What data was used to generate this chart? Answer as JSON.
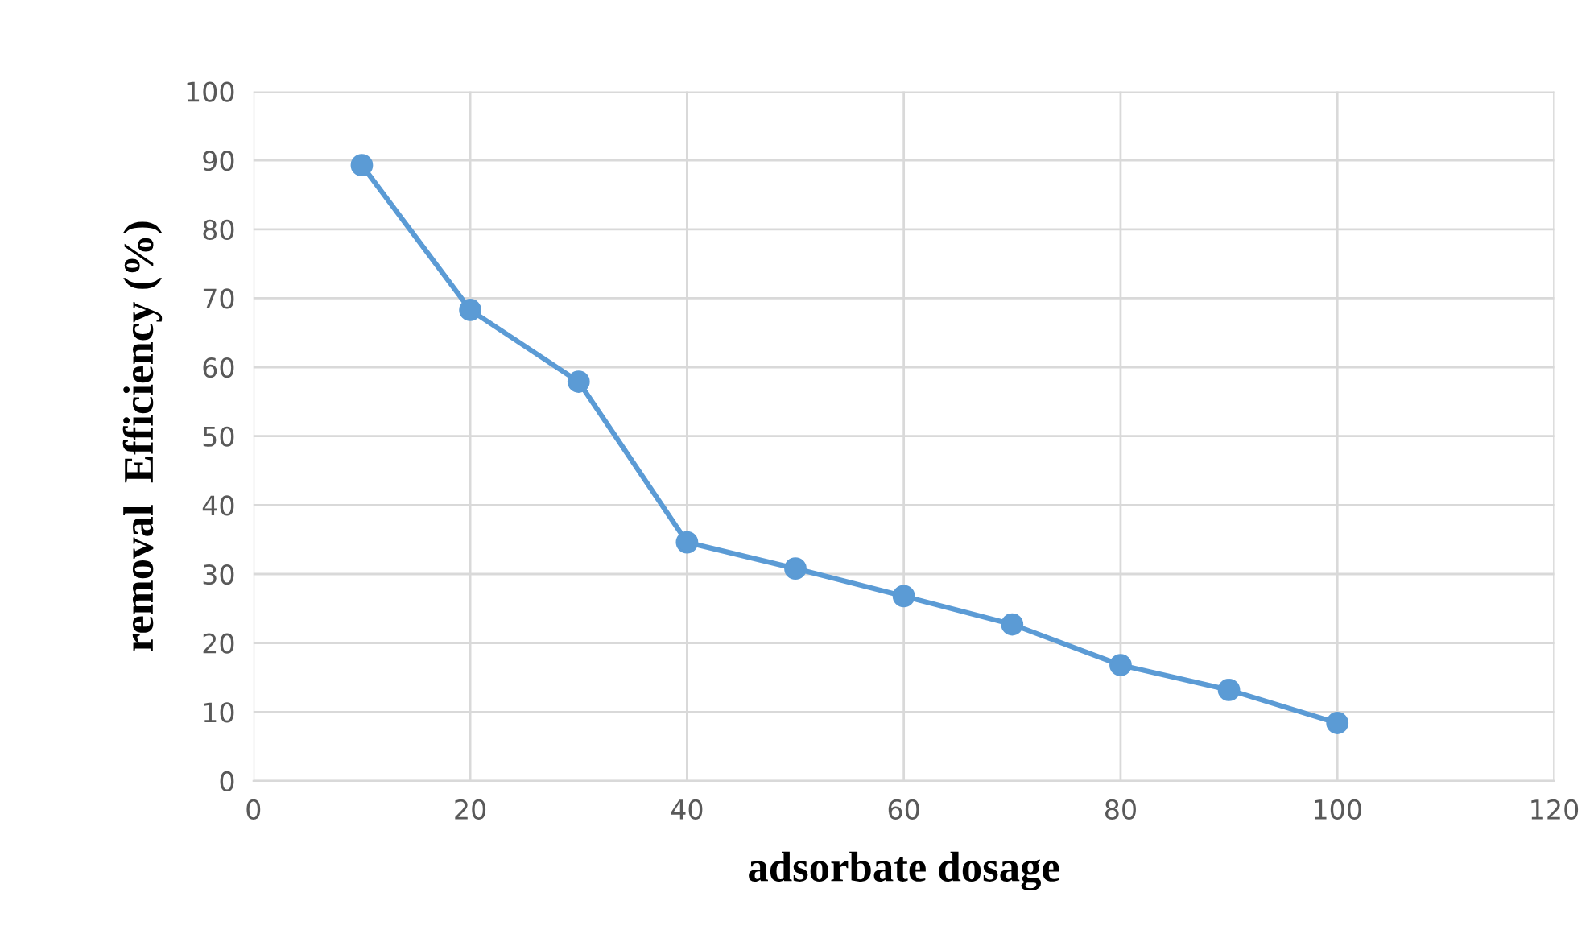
{
  "chart_data": {
    "type": "line",
    "xlabel": "adsorbate dosage",
    "ylabel": "removal  Efficiency (%)",
    "x": [
      10,
      20,
      30,
      40,
      50,
      60,
      70,
      80,
      90,
      100
    ],
    "series": [
      {
        "color": "#5b9bd5",
        "values": [
          89.3,
          68.3,
          57.9,
          34.6,
          30.8,
          26.8,
          22.7,
          16.8,
          13.2,
          8.4
        ]
      }
    ],
    "xlim": [
      0,
      120
    ],
    "xticks": [
      0,
      20,
      40,
      60,
      80,
      100,
      120
    ],
    "ylim": [
      0,
      100
    ],
    "yticks": [
      0,
      10,
      20,
      30,
      40,
      50,
      60,
      70,
      80,
      90,
      100
    ],
    "grid": true,
    "marker": "circle",
    "line_style": "solid",
    "legend": false
  }
}
